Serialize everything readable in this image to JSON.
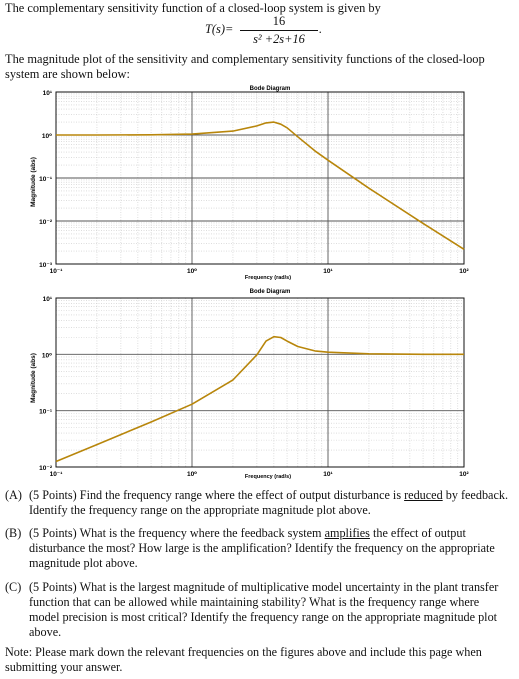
{
  "intro": {
    "line1": "The complementary sensitivity function of a closed-loop system is given by",
    "tf_lhs": "T(s)=",
    "tf_num": "16",
    "tf_den": "s² +2s+16",
    "tf_end": ".",
    "line2": "The magnitude plot of the sensitivity and complementary sensitivity functions of the closed-loop",
    "line3": "system are shown below:"
  },
  "plot1": {
    "title": "Bode Diagram",
    "xlabel": "Frequency  (rad/s)",
    "ylabel": "Magnitude (abs)",
    "yticks": [
      "10¹",
      "10⁰",
      "10⁻¹",
      "10⁻²",
      "10⁻³"
    ],
    "xticks": [
      "10⁻¹",
      "10⁰",
      "10¹",
      "10²"
    ]
  },
  "plot2": {
    "title": "Bode Diagram",
    "xlabel": "Frequency  (rad/s)",
    "ylabel": "Magnitude (abs)",
    "yticks": [
      "10¹",
      "10⁰",
      "10⁻¹",
      "10⁻²"
    ],
    "xticks": [
      "10⁻¹",
      "10⁰",
      "10¹",
      "10²"
    ]
  },
  "chart_data": [
    {
      "type": "line",
      "title": "Bode Diagram",
      "xlabel": "Frequency  (rad/s)",
      "ylabel": "Magnitude (abs)",
      "xscale": "log",
      "yscale": "log",
      "xlim": [
        0.1,
        100
      ],
      "ylim": [
        0.001,
        10
      ],
      "grid": true,
      "color": "#b8860b",
      "x": [
        0.1,
        0.2,
        0.5,
        1,
        2,
        3,
        3.5,
        4,
        4.5,
        5,
        6,
        8,
        10,
        20,
        50,
        100
      ],
      "values": [
        1.0,
        1.0,
        1.01,
        1.05,
        1.23,
        1.63,
        1.91,
        2.0,
        1.78,
        1.47,
        0.91,
        0.43,
        0.26,
        0.058,
        0.0088,
        0.0022
      ]
    },
    {
      "type": "line",
      "title": "Bode Diagram",
      "xlabel": "Frequency  (rad/s)",
      "ylabel": "Magnitude (abs)",
      "xscale": "log",
      "yscale": "log",
      "xlim": [
        0.1,
        100
      ],
      "ylim": [
        0.01,
        10
      ],
      "grid": true,
      "color": "#b8860b",
      "x": [
        0.1,
        0.2,
        0.5,
        1,
        2,
        3,
        3.5,
        4,
        4.5,
        5,
        6,
        8,
        10,
        20,
        50,
        100
      ],
      "values": [
        0.0125,
        0.025,
        0.063,
        0.13,
        0.35,
        0.98,
        1.72,
        2.06,
        1.99,
        1.72,
        1.38,
        1.15,
        1.09,
        1.02,
        1.0,
        1.0
      ]
    }
  ],
  "questions": [
    {
      "label": "(A)",
      "pre": "(5 Points) Find the frequency range where the effect of output disturbance is ",
      "em": "reduced",
      "post": " by feedback.  Identify the frequency range on the appropriate magnitude plot above."
    },
    {
      "label": "(B)",
      "pre": "(5 Points) What is the frequency where the feedback system ",
      "em": "amplifies",
      "post": " the effect of output disturbance the most? How large is the amplification?  Identify the frequency on the appropriate magnitude plot above."
    },
    {
      "label": "(C)",
      "pre": "(5 Points) What is the largest magnitude of multiplicative model uncertainty in the plant transfer function that can be allowed while maintaining stability? What is the frequency range where model precision is most critical?  Identify the frequency range on the appropriate magnitude plot above.",
      "em": "",
      "post": ""
    }
  ],
  "note": "Note:  Please mark down the relevant frequencies on the figures above and include this page when submitting your answer."
}
